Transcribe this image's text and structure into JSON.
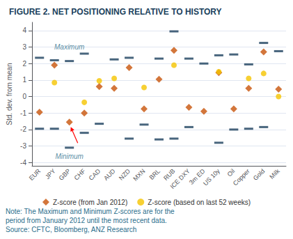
{
  "chart_data": {
    "type": "scatter",
    "title": "FIGURE 2. NET POSITIONING RELATIVE TO HISTORY",
    "ylabel": "Std. dev. from mean",
    "categories": [
      "EUR",
      "JPY",
      "GBP",
      "CHF",
      "CAD",
      "AUD",
      "NZD",
      "MXN",
      "BRL",
      "RUB",
      "ICE DXY",
      "3m ED",
      "US 10y",
      "Oil",
      "Copper",
      "Gold",
      "Milk"
    ],
    "series": [
      {
        "color": "#1a3f5c",
        "marker": "dash",
        "values": [
          2.35,
          2.2,
          2.15,
          2.6,
          null,
          2.25,
          2.35,
          null,
          2.3,
          3.95,
          2.3,
          2.0,
          2.5,
          2.55,
          1.95,
          3.25,
          2.75
        ]
      },
      {
        "color": "#1a3f5c",
        "marker": "dash",
        "values": [
          -1.95,
          -1.95,
          -3.1,
          -2.2,
          -1.65,
          null,
          -2.55,
          -1.7,
          -2.6,
          -2.55,
          -1.85,
          null,
          -2.8,
          -2.0,
          -1.95,
          -1.85,
          null
        ]
      },
      {
        "name": "Z-score (from Jan 2012)",
        "color": "#c8540a",
        "marker": "diamond",
        "values": [
          -0.95,
          1.9,
          -1.55,
          -1.0,
          0.6,
          0.5,
          1.75,
          -0.75,
          1.05,
          2.8,
          -0.65,
          -0.9,
          1.45,
          -0.75,
          0.5,
          2.7,
          0.45
        ]
      },
      {
        "name": "Z-score (based on last 52 weeks)",
        "color": "#f5c400",
        "marker": "circle",
        "values": [
          null,
          0.85,
          null,
          -0.35,
          0.95,
          1.1,
          null,
          0.55,
          null,
          1.9,
          null,
          null,
          1.5,
          null,
          1.1,
          1.4,
          0.0
        ]
      }
    ],
    "annotations": [
      "Maximum",
      "Minimum"
    ],
    "note": [
      "Note: The Maximum and Minimum Z-scores are for the",
      "period from January 2012 until the most recent data."
    ],
    "source": "Source: CFTC, Bloomberg, ANZ Research",
    "ylim": [
      -4.2,
      4.5
    ],
    "yticks": [
      -4,
      -3,
      -2,
      -1,
      0,
      1,
      2,
      3,
      4
    ],
    "grid": true,
    "legend": "bottom"
  }
}
